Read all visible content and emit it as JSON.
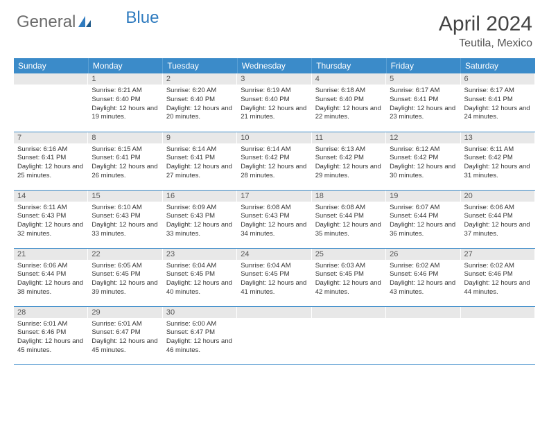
{
  "logo": {
    "part1": "General",
    "part2": "Blue"
  },
  "title": "April 2024",
  "subtitle": "Teutila, Mexico",
  "colors": {
    "header_bg": "#3b8bc9",
    "header_text": "#ffffff",
    "daybar_bg": "#e8e8e8",
    "logo_gray": "#6b6b6b",
    "logo_blue": "#2f7bbf"
  },
  "weekdays": [
    "Sunday",
    "Monday",
    "Tuesday",
    "Wednesday",
    "Thursday",
    "Friday",
    "Saturday"
  ],
  "weeks": [
    [
      {
        "n": "",
        "sr": "",
        "ss": "",
        "dl": ""
      },
      {
        "n": "1",
        "sr": "Sunrise: 6:21 AM",
        "ss": "Sunset: 6:40 PM",
        "dl": "Daylight: 12 hours and 19 minutes."
      },
      {
        "n": "2",
        "sr": "Sunrise: 6:20 AM",
        "ss": "Sunset: 6:40 PM",
        "dl": "Daylight: 12 hours and 20 minutes."
      },
      {
        "n": "3",
        "sr": "Sunrise: 6:19 AM",
        "ss": "Sunset: 6:40 PM",
        "dl": "Daylight: 12 hours and 21 minutes."
      },
      {
        "n": "4",
        "sr": "Sunrise: 6:18 AM",
        "ss": "Sunset: 6:40 PM",
        "dl": "Daylight: 12 hours and 22 minutes."
      },
      {
        "n": "5",
        "sr": "Sunrise: 6:17 AM",
        "ss": "Sunset: 6:41 PM",
        "dl": "Daylight: 12 hours and 23 minutes."
      },
      {
        "n": "6",
        "sr": "Sunrise: 6:17 AM",
        "ss": "Sunset: 6:41 PM",
        "dl": "Daylight: 12 hours and 24 minutes."
      }
    ],
    [
      {
        "n": "7",
        "sr": "Sunrise: 6:16 AM",
        "ss": "Sunset: 6:41 PM",
        "dl": "Daylight: 12 hours and 25 minutes."
      },
      {
        "n": "8",
        "sr": "Sunrise: 6:15 AM",
        "ss": "Sunset: 6:41 PM",
        "dl": "Daylight: 12 hours and 26 minutes."
      },
      {
        "n": "9",
        "sr": "Sunrise: 6:14 AM",
        "ss": "Sunset: 6:41 PM",
        "dl": "Daylight: 12 hours and 27 minutes."
      },
      {
        "n": "10",
        "sr": "Sunrise: 6:14 AM",
        "ss": "Sunset: 6:42 PM",
        "dl": "Daylight: 12 hours and 28 minutes."
      },
      {
        "n": "11",
        "sr": "Sunrise: 6:13 AM",
        "ss": "Sunset: 6:42 PM",
        "dl": "Daylight: 12 hours and 29 minutes."
      },
      {
        "n": "12",
        "sr": "Sunrise: 6:12 AM",
        "ss": "Sunset: 6:42 PM",
        "dl": "Daylight: 12 hours and 30 minutes."
      },
      {
        "n": "13",
        "sr": "Sunrise: 6:11 AM",
        "ss": "Sunset: 6:42 PM",
        "dl": "Daylight: 12 hours and 31 minutes."
      }
    ],
    [
      {
        "n": "14",
        "sr": "Sunrise: 6:11 AM",
        "ss": "Sunset: 6:43 PM",
        "dl": "Daylight: 12 hours and 32 minutes."
      },
      {
        "n": "15",
        "sr": "Sunrise: 6:10 AM",
        "ss": "Sunset: 6:43 PM",
        "dl": "Daylight: 12 hours and 33 minutes."
      },
      {
        "n": "16",
        "sr": "Sunrise: 6:09 AM",
        "ss": "Sunset: 6:43 PM",
        "dl": "Daylight: 12 hours and 33 minutes."
      },
      {
        "n": "17",
        "sr": "Sunrise: 6:08 AM",
        "ss": "Sunset: 6:43 PM",
        "dl": "Daylight: 12 hours and 34 minutes."
      },
      {
        "n": "18",
        "sr": "Sunrise: 6:08 AM",
        "ss": "Sunset: 6:44 PM",
        "dl": "Daylight: 12 hours and 35 minutes."
      },
      {
        "n": "19",
        "sr": "Sunrise: 6:07 AM",
        "ss": "Sunset: 6:44 PM",
        "dl": "Daylight: 12 hours and 36 minutes."
      },
      {
        "n": "20",
        "sr": "Sunrise: 6:06 AM",
        "ss": "Sunset: 6:44 PM",
        "dl": "Daylight: 12 hours and 37 minutes."
      }
    ],
    [
      {
        "n": "21",
        "sr": "Sunrise: 6:06 AM",
        "ss": "Sunset: 6:44 PM",
        "dl": "Daylight: 12 hours and 38 minutes."
      },
      {
        "n": "22",
        "sr": "Sunrise: 6:05 AM",
        "ss": "Sunset: 6:45 PM",
        "dl": "Daylight: 12 hours and 39 minutes."
      },
      {
        "n": "23",
        "sr": "Sunrise: 6:04 AM",
        "ss": "Sunset: 6:45 PM",
        "dl": "Daylight: 12 hours and 40 minutes."
      },
      {
        "n": "24",
        "sr": "Sunrise: 6:04 AM",
        "ss": "Sunset: 6:45 PM",
        "dl": "Daylight: 12 hours and 41 minutes."
      },
      {
        "n": "25",
        "sr": "Sunrise: 6:03 AM",
        "ss": "Sunset: 6:45 PM",
        "dl": "Daylight: 12 hours and 42 minutes."
      },
      {
        "n": "26",
        "sr": "Sunrise: 6:02 AM",
        "ss": "Sunset: 6:46 PM",
        "dl": "Daylight: 12 hours and 43 minutes."
      },
      {
        "n": "27",
        "sr": "Sunrise: 6:02 AM",
        "ss": "Sunset: 6:46 PM",
        "dl": "Daylight: 12 hours and 44 minutes."
      }
    ],
    [
      {
        "n": "28",
        "sr": "Sunrise: 6:01 AM",
        "ss": "Sunset: 6:46 PM",
        "dl": "Daylight: 12 hours and 45 minutes."
      },
      {
        "n": "29",
        "sr": "Sunrise: 6:01 AM",
        "ss": "Sunset: 6:47 PM",
        "dl": "Daylight: 12 hours and 45 minutes."
      },
      {
        "n": "30",
        "sr": "Sunrise: 6:00 AM",
        "ss": "Sunset: 6:47 PM",
        "dl": "Daylight: 12 hours and 46 minutes."
      },
      {
        "n": "",
        "sr": "",
        "ss": "",
        "dl": ""
      },
      {
        "n": "",
        "sr": "",
        "ss": "",
        "dl": ""
      },
      {
        "n": "",
        "sr": "",
        "ss": "",
        "dl": ""
      },
      {
        "n": "",
        "sr": "",
        "ss": "",
        "dl": ""
      }
    ]
  ]
}
